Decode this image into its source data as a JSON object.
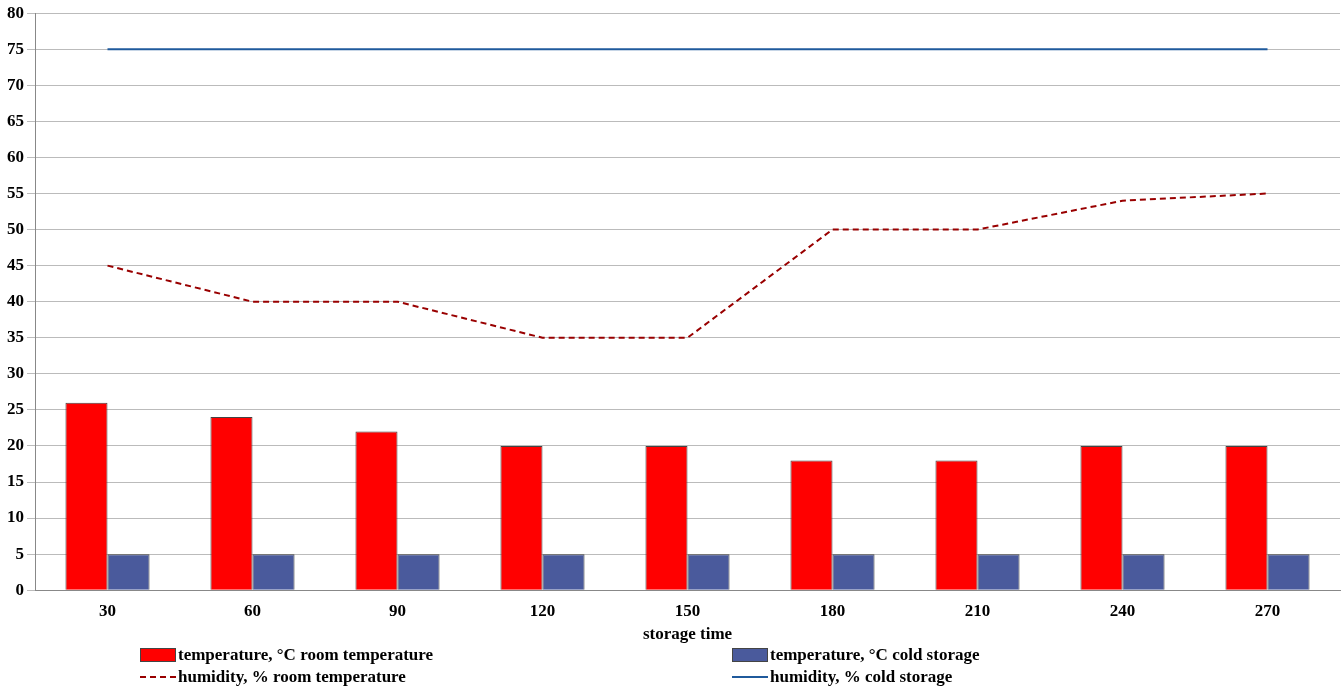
{
  "chart_data": {
    "type": "bar",
    "xlabel": "storage time",
    "categories": [
      "30",
      "60",
      "90",
      "120",
      "150",
      "180",
      "210",
      "240",
      "270"
    ],
    "series": [
      {
        "name": "temperature, °C room temperature",
        "color": "#ff0000",
        "values": [
          26,
          24,
          22,
          20,
          20,
          18,
          18,
          20,
          20
        ]
      },
      {
        "name": "temperature, °C cold storage",
        "color": "#4a5a9c",
        "values": [
          5,
          5,
          5,
          5,
          5,
          5,
          5,
          5,
          5
        ]
      },
      {
        "name": "humidity, % room temperature",
        "type": "line",
        "color": "#990000",
        "line_style": "dashed",
        "values": [
          45,
          40,
          40,
          35,
          35,
          50,
          50,
          54,
          55
        ]
      },
      {
        "name": "humidity, % cold storage",
        "type": "line",
        "color": "#1f5a9c",
        "line_style": "solid",
        "values": [
          75,
          75,
          75,
          75,
          75,
          75,
          75,
          75,
          75
        ]
      }
    ],
    "ylim": [
      0,
      80
    ],
    "yticks": [
      0,
      5,
      10,
      15,
      20,
      25,
      30,
      35,
      40,
      45,
      50,
      55,
      60,
      65,
      70,
      75,
      80
    ],
    "grid": "y",
    "legend": "bottom",
    "marker": "none"
  }
}
